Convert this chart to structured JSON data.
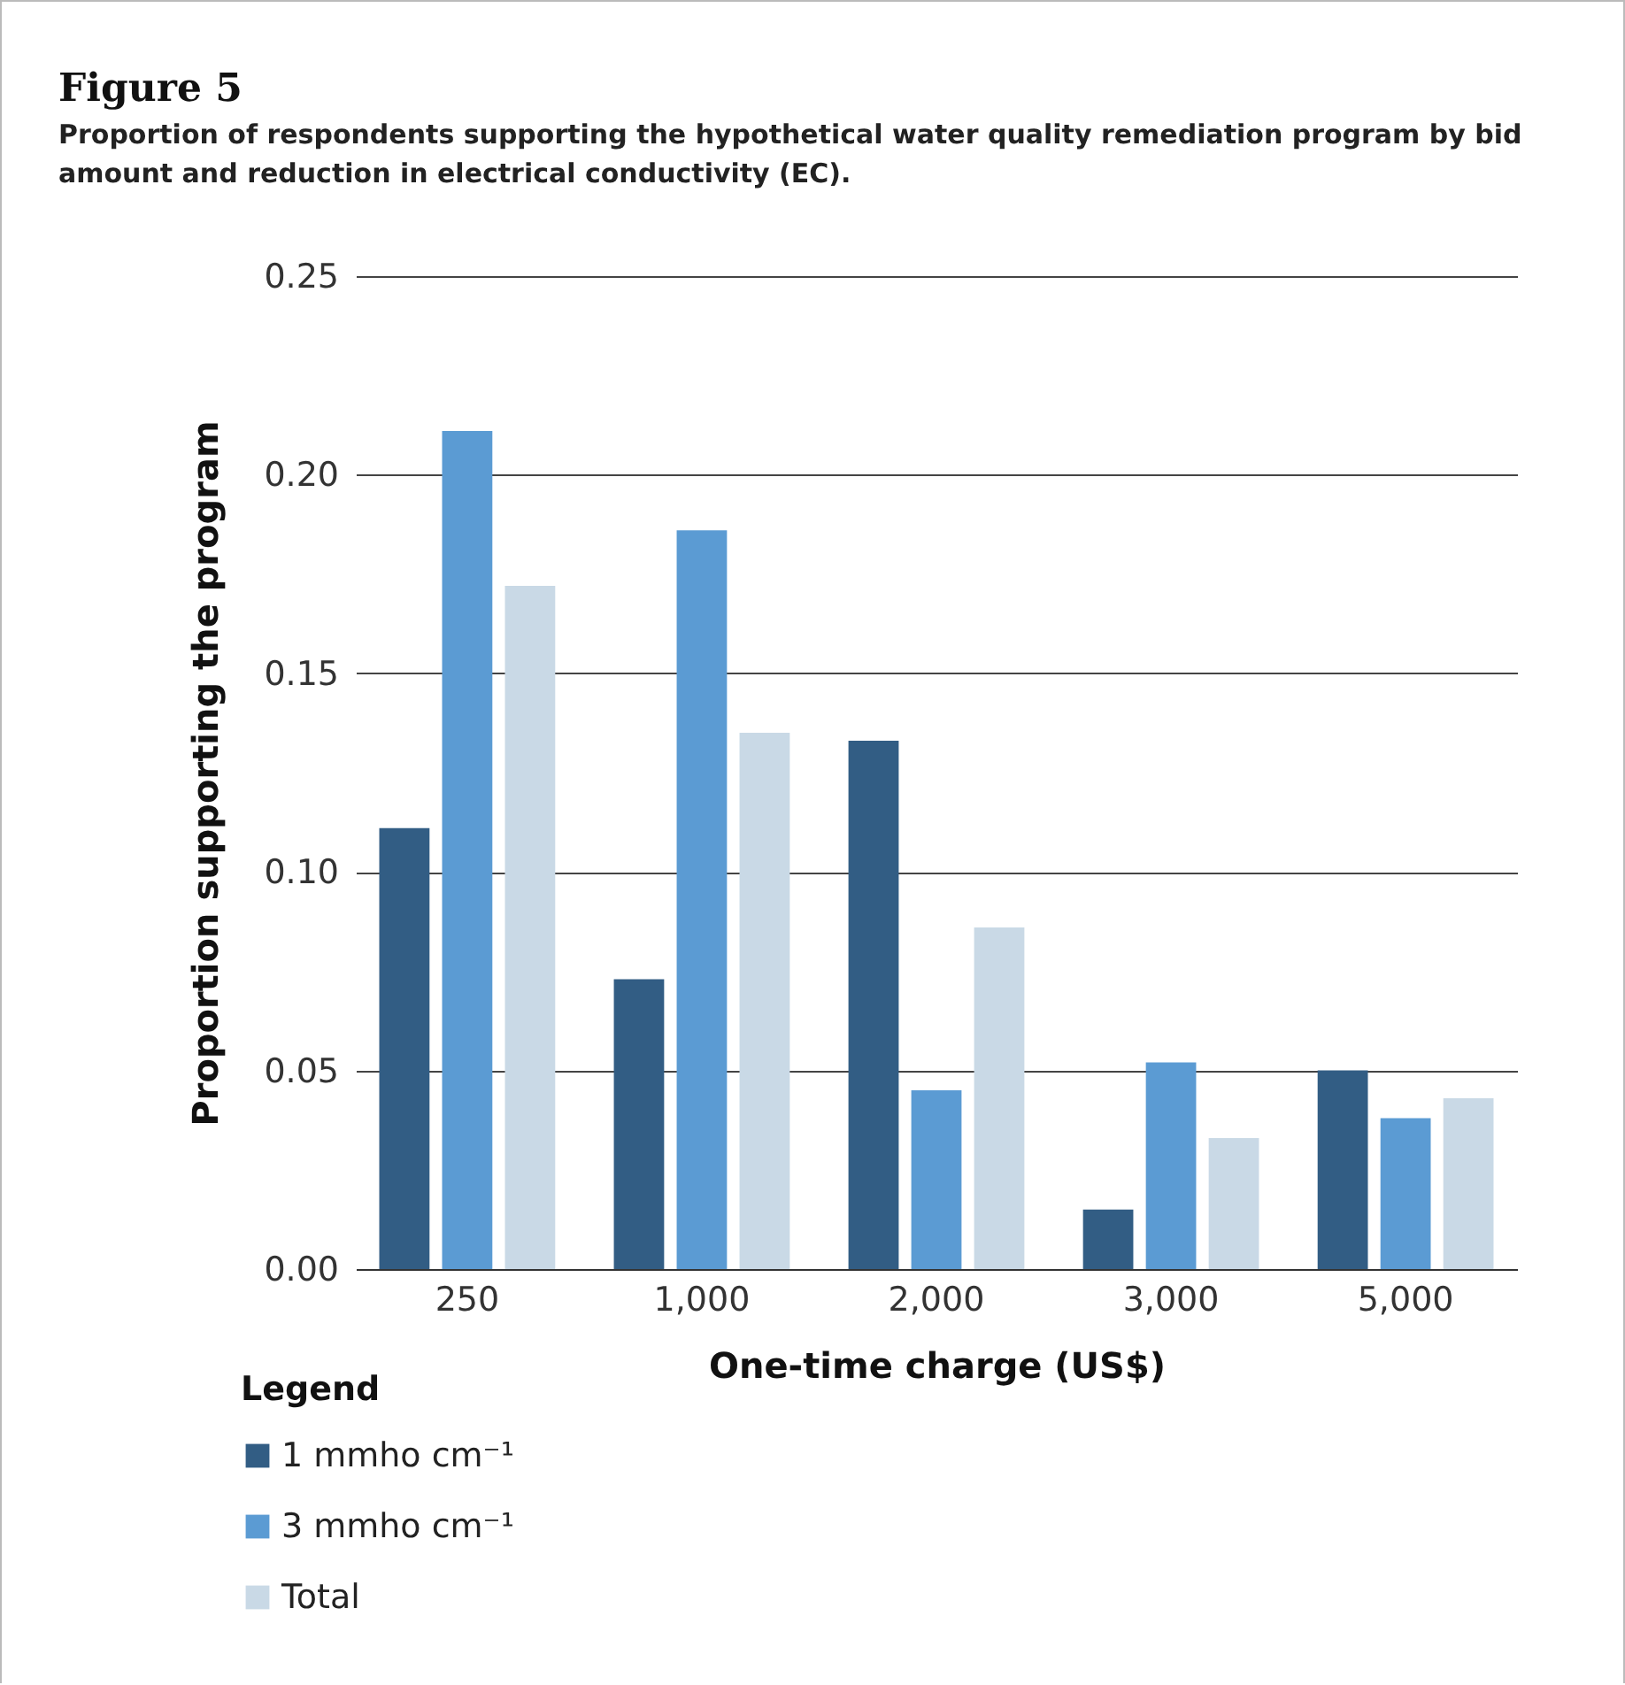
{
  "chart_data": {
    "type": "bar",
    "title": "Figure 5",
    "subtitle": "Proportion of respondents supporting the hypothetical water quality remediation program by bid amount and reduction in electrical conductivity (EC).",
    "xlabel": "One-time charge (US$)",
    "ylabel": "Proportion supporting the program",
    "legend_title": "Legend",
    "categories": [
      "250",
      "1,000",
      "2,000",
      "3,000",
      "5,000"
    ],
    "series": [
      {
        "name": "1 mmho cm⁻¹",
        "color": "#325d84",
        "values": [
          0.111,
          0.073,
          0.133,
          0.015,
          0.05
        ]
      },
      {
        "name": "3 mmho cm⁻¹",
        "color": "#5b9bd3",
        "values": [
          0.211,
          0.186,
          0.045,
          0.052,
          0.038
        ]
      },
      {
        "name": "Total",
        "color": "#c9d9e6",
        "values": [
          0.172,
          0.135,
          0.086,
          0.033,
          0.043
        ]
      }
    ],
    "ylim": [
      0,
      0.25
    ],
    "yticks": [
      {
        "value": 0,
        "label": "0.00"
      },
      0.05,
      {
        "value": 0.1,
        "label": "0.10"
      },
      0.15,
      {
        "value": 0.2,
        "label": "0.20"
      },
      0.25
    ],
    "grid": "y",
    "legend": "bottom"
  }
}
